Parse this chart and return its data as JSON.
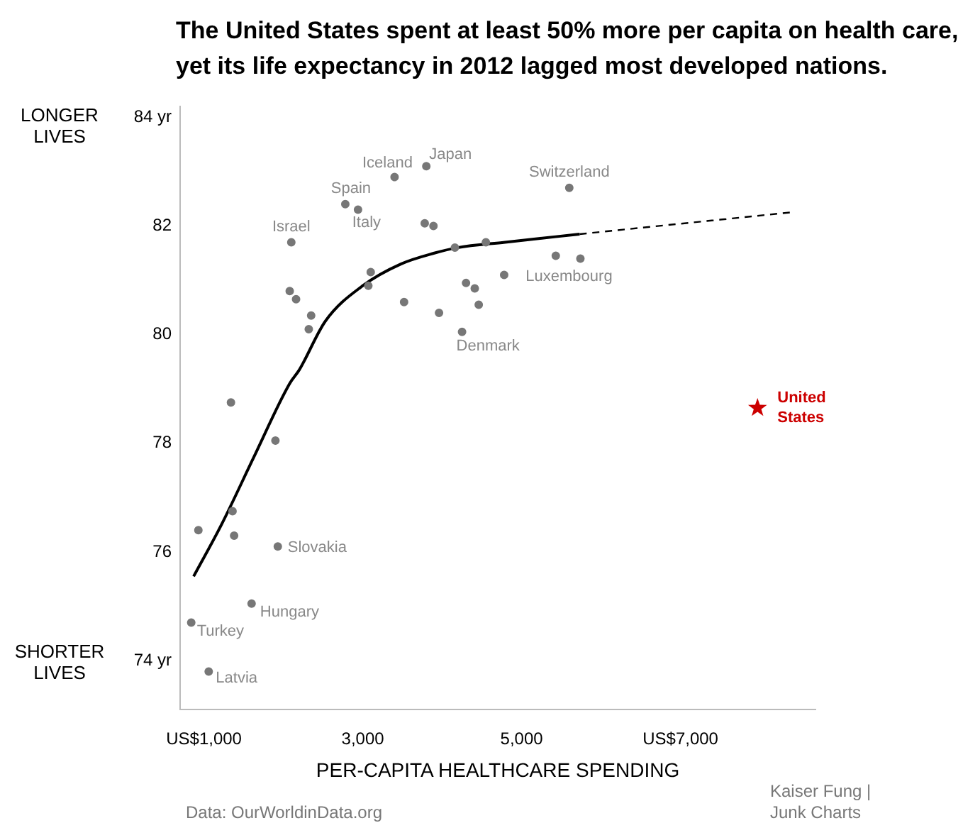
{
  "chart_data": {
    "type": "scatter",
    "title": "The United States spent at least 50% more per capita on health care, yet its life expectancy in 2012 lagged most developed nations.",
    "xlabel": "PER-CAPITA HEALTHCARE SPENDING",
    "xlim": [
      700,
      8700
    ],
    "ylim": [
      73.1,
      84.2
    ],
    "xticks": [
      {
        "value": 1000,
        "label": "US$1,000"
      },
      {
        "value": 3000,
        "label": "3,000"
      },
      {
        "value": 5000,
        "label": "5,000"
      },
      {
        "value": 7000,
        "label": "US$7,000"
      }
    ],
    "yticks": [
      {
        "value": 74,
        "label": "74 yr"
      },
      76,
      78,
      80,
      82,
      {
        "value": 84,
        "label": "84 yr"
      }
    ],
    "grid": false,
    "legend": false,
    "annotations": [
      "LONGER LIVES",
      "SHORTER LIVES",
      "Data: OurWorldinData.org",
      "Kaiser Fung | Junk Charts",
      {
        "text": "Iceland",
        "x": 3400,
        "y": 82.9
      },
      {
        "text": "Japan",
        "x": 3800,
        "y": 83.1
      },
      {
        "text": "Switzerland",
        "x": 5600,
        "y": 82.7
      },
      {
        "text": "Spain",
        "x": 2780,
        "y": 82.4
      },
      {
        "text": "Italy",
        "x": 2940,
        "y": 82.3
      },
      {
        "text": "Israel",
        "x": 2100,
        "y": 81.7
      },
      {
        "text": "Luxembourg",
        "x": 5740,
        "y": 81.4
      },
      {
        "text": "Denmark",
        "x": 4250,
        "y": 80.05
      },
      {
        "text": "Slovakia",
        "x": 1930,
        "y": 76.1
      },
      {
        "text": "Hungary",
        "x": 1600,
        "y": 75.05
      },
      {
        "text": "Turkey",
        "x": 840,
        "y": 74.7
      },
      {
        "text": "Latvia",
        "x": 1060,
        "y": 73.8
      },
      {
        "text": "United States",
        "x": 7970,
        "y": 78.65
      }
    ],
    "series": [
      {
        "color": "#777777",
        "marker": "circle",
        "x": [
          3400,
          3800,
          5600,
          2780,
          2940,
          3780,
          3890,
          2100,
          4550,
          4160,
          5430,
          5740,
          3100,
          4780,
          3070,
          2080,
          4300,
          4410,
          2160,
          3520,
          4460,
          2350,
          3960,
          2320,
          4250,
          1340,
          1900,
          1360,
          930,
          1380,
          1930,
          1600,
          840,
          1060
        ],
        "values": [
          82.9,
          83.1,
          82.7,
          82.4,
          82.3,
          82.05,
          82.0,
          81.7,
          81.7,
          81.6,
          81.45,
          81.4,
          81.15,
          81.1,
          80.9,
          80.8,
          80.95,
          80.85,
          80.65,
          80.6,
          80.55,
          80.35,
          80.4,
          80.1,
          80.05,
          78.75,
          78.05,
          76.75,
          76.4,
          76.3,
          76.1,
          75.05,
          74.7,
          73.8
        ]
      },
      {
        "color": "#cc0000",
        "marker": "star",
        "x": [
          7970
        ],
        "values": [
          78.65
        ]
      },
      {
        "type": "line",
        "color": "#000000",
        "marker": "none",
        "line_style": "solid",
        "x": [
          870,
          1220,
          1630,
          2080,
          2200,
          2530,
          3000,
          3480,
          3900,
          4190,
          4790,
          5730
        ],
        "values": [
          75.55,
          76.5,
          77.75,
          79.1,
          79.35,
          80.25,
          80.9,
          81.3,
          81.5,
          81.6,
          81.7,
          81.85
        ]
      },
      {
        "type": "line",
        "color": "#000000",
        "marker": "none",
        "line_style": "dashed",
        "x": [
          5730,
          8390
        ],
        "values": [
          81.85,
          82.25
        ]
      }
    ]
  }
}
